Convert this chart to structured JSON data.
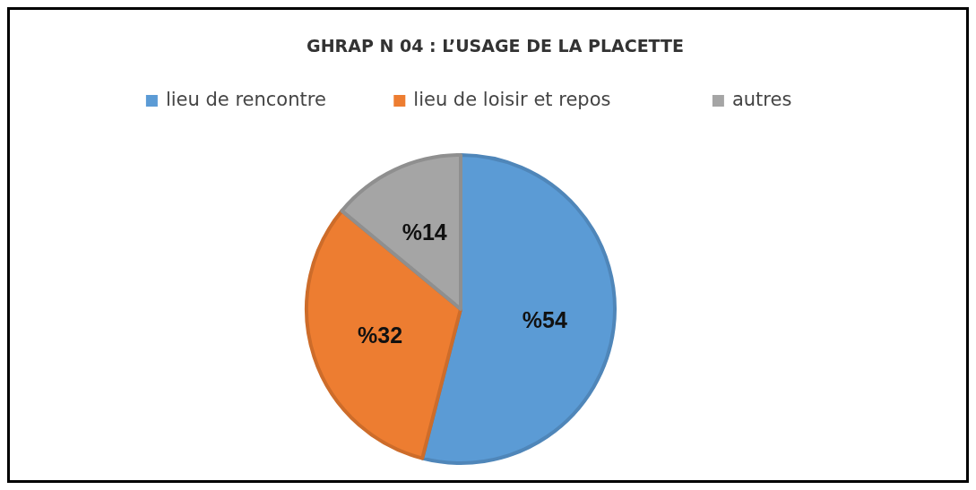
{
  "chart_data": {
    "type": "pie",
    "title": "GHRAP N 04 : L’USAGE DE LA PLACETTE",
    "categories": [
      "lieu de rencontre",
      "lieu de loisir et repos",
      "autres"
    ],
    "values": [
      54,
      32,
      14
    ],
    "colors": [
      "#5b9bd5",
      "#ed7d31",
      "#a5a5a5"
    ],
    "value_labels": [
      "%54",
      "%32",
      "%14"
    ],
    "legend": "top"
  }
}
